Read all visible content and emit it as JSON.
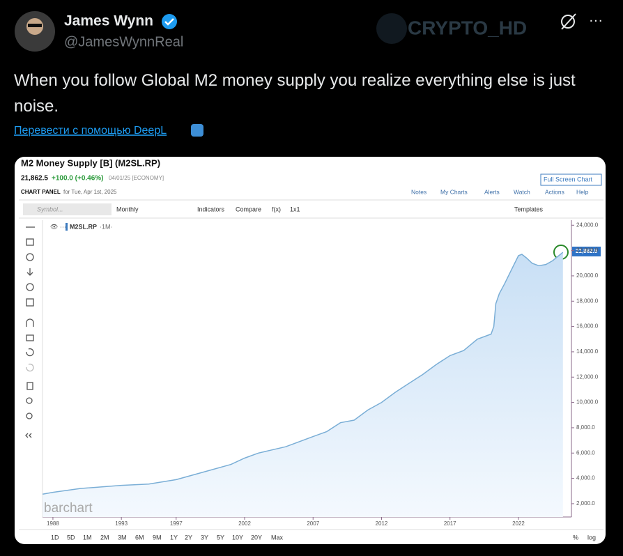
{
  "tweet": {
    "name": "James Wynn",
    "handle": "@JamesWynnReal",
    "watermark": "CRYPTO_HD",
    "text": "When you follow Global M2 money supply you realize everything else is just noise.",
    "translate": "Перевести с помощью DeepL"
  },
  "panel": {
    "quote": "21,862.5",
    "change": "+100.0 (+0.46%)",
    "date": "04/01/25 [ECONOMY]",
    "panel_label": "CHART PANEL",
    "panel_date": "for Tue, Apr 1st, 2025",
    "full_screen": "Full Screen Chart",
    "menu": [
      "Notes",
      "My Charts",
      "Alerts",
      "Watch",
      "Actions",
      "Help"
    ],
    "toolbar": [
      "Symbol...",
      "Monthly",
      "Indicators",
      "Compare",
      "f(x)",
      "1x1",
      "Templates"
    ],
    "symbol": "M2SL.RP",
    "interval": "·1M·",
    "brand": "barchart",
    "ranges": [
      "1D",
      "5D",
      "1M",
      "2M",
      "3M",
      "6M",
      "9M",
      "1Y",
      "2Y",
      "3Y",
      "5Y",
      "10Y",
      "20Y",
      "Max"
    ],
    "scale_options": [
      "%",
      "log"
    ]
  },
  "chart_data": {
    "type": "area",
    "title": "M2 Money Supply [B] (M2SL.RP)",
    "color": "#7aaed6",
    "x": [
      1987.25,
      1988,
      1990,
      1993,
      1995,
      1997,
      1999,
      2001,
      2002,
      2003,
      2005,
      2007,
      2008,
      2009,
      2010,
      2011,
      2012,
      2013,
      2014,
      2015,
      2016,
      2017,
      2018,
      2019,
      2020,
      2020.2,
      2020.35,
      2020.6,
      2021,
      2021.5,
      2022,
      2022.25,
      2022.6,
      2023,
      2023.5,
      2024,
      2024.5,
      2025.25
    ],
    "values": [
      2750,
      2900,
      3200,
      3450,
      3550,
      3900,
      4500,
      5100,
      5600,
      6000,
      6500,
      7300,
      7700,
      8400,
      8600,
      9400,
      10000,
      10800,
      11500,
      12200,
      13000,
      13700,
      14100,
      15000,
      15400,
      16000,
      17800,
      18600,
      19400,
      20500,
      21600,
      21700,
      21400,
      21000,
      20800,
      20900,
      21200,
      21862.5
    ],
    "xlim": [
      1987.24,
      2025.87
    ],
    "xticks": [
      1988,
      1993,
      1997,
      2002,
      2007,
      2012,
      2017,
      2022
    ],
    "ylim": [
      950,
      24400
    ],
    "yticks": [
      {
        "value": 2000,
        "label": "2,000.0"
      },
      {
        "value": 4000,
        "label": "4,000.0"
      },
      {
        "value": 6000,
        "label": "6,000.0"
      },
      {
        "value": 8000,
        "label": "8,000.0"
      },
      {
        "value": 10000,
        "label": "10,000.0"
      },
      {
        "value": 12000,
        "label": "12,000.0"
      },
      {
        "value": 14000,
        "label": "14,000.0"
      },
      {
        "value": 16000,
        "label": "16,000.0"
      },
      {
        "value": 18000,
        "label": "18,000.0"
      },
      {
        "value": 20000,
        "label": "20,000.0"
      },
      {
        "value": 22000,
        "label": "22,000.0"
      },
      {
        "value": 24000,
        "label": "24,000.0"
      }
    ]
  }
}
